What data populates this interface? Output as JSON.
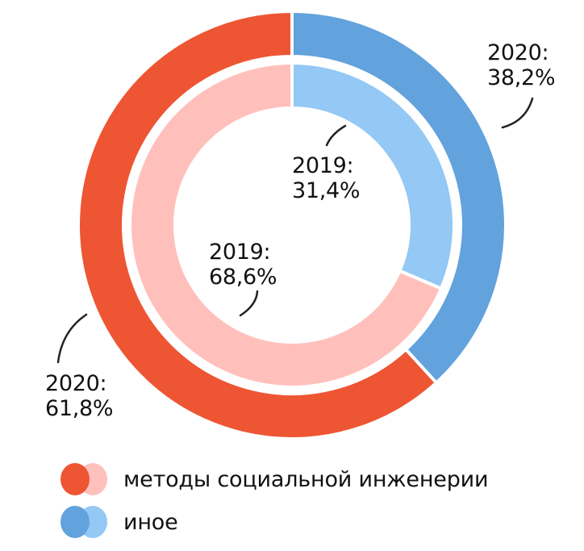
{
  "chart_data": {
    "type": "pie",
    "subtype": "nested-donut",
    "title": "",
    "categories": [
      "методы социальной инженерии",
      "иное"
    ],
    "series": [
      {
        "name": "2019",
        "ring": "inner",
        "values": [
          68.6,
          31.4
        ],
        "colors": [
          "#FFC0BC",
          "#94C8F5"
        ]
      },
      {
        "name": "2020",
        "ring": "outer",
        "values": [
          61.8,
          38.2
        ],
        "colors": [
          "#EE5533",
          "#62A2DD"
        ]
      }
    ],
    "legend_position": "bottom"
  },
  "labels": {
    "outer_other": {
      "year": "2020:",
      "value": "38,2%"
    },
    "inner_other": {
      "year": "2019:",
      "value": "31,4%"
    },
    "inner_social": {
      "year": "2019:",
      "value": "68,6%"
    },
    "outer_social": {
      "year": "2020:",
      "value": "61,8%"
    }
  },
  "legend": [
    {
      "label": "методы социальной инженерии",
      "color_2020": "#EE5533",
      "color_2019": "#FFC0BC"
    },
    {
      "label": "иное",
      "color_2020": "#62A2DD",
      "color_2019": "#94C8F5"
    }
  ]
}
